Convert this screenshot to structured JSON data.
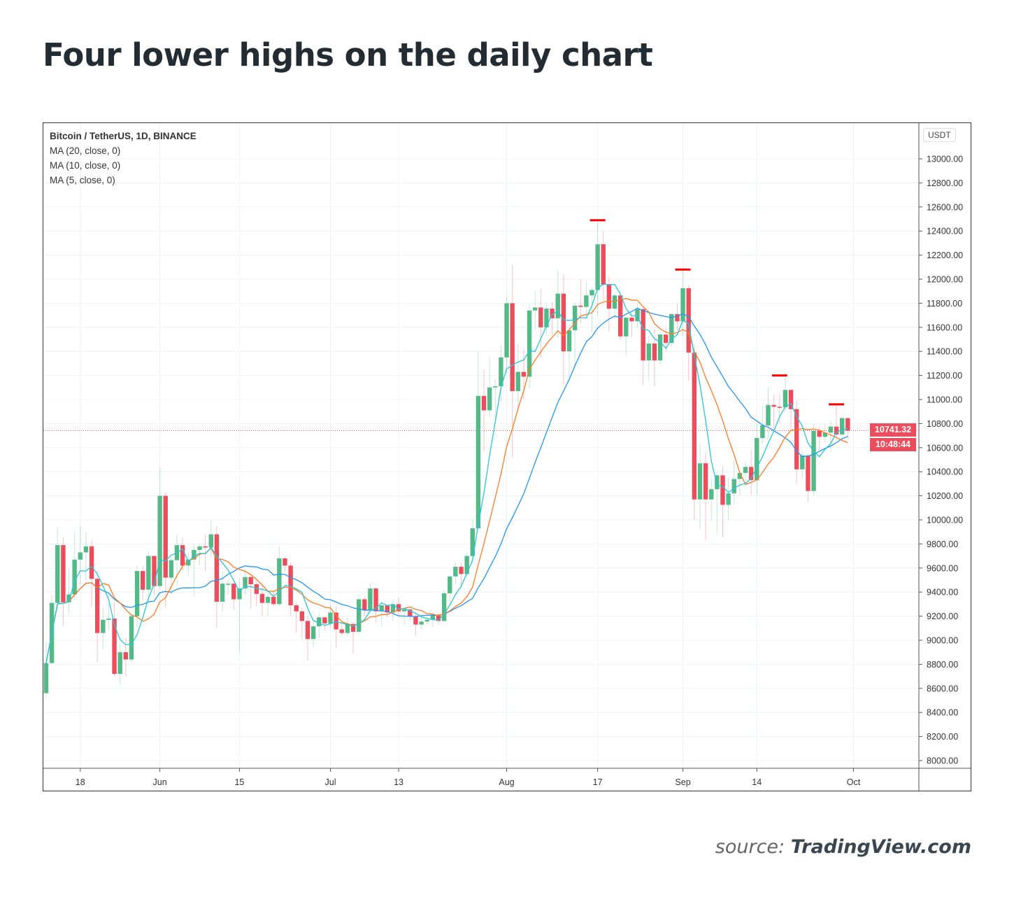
{
  "title": "Four lower highs on the daily chart",
  "source": {
    "prefix": "source:",
    "site": "TradingView.com"
  },
  "chart_data": {
    "type": "candlestick",
    "legend": [
      "Bitcoin / TetherUS, 1D, BINANCE",
      "MA (20, close, 0)",
      "MA (10, close, 0)",
      "MA (5, close, 0)"
    ],
    "currency": "USDT",
    "last_price": "10741.32",
    "countdown": "10:48:44",
    "ylim": [
      7950,
      13250
    ],
    "y_ticks": [
      8000,
      8200,
      8400,
      8600,
      8800,
      9000,
      9200,
      9400,
      9600,
      9800,
      10000,
      10200,
      10400,
      10600,
      10800,
      11000,
      11200,
      11400,
      11600,
      11800,
      12000,
      12200,
      12400,
      12600,
      12800,
      13000
    ],
    "x_ticks": [
      {
        "date": "May 18",
        "label": "18"
      },
      {
        "date": "Jun 1",
        "label": "Jun"
      },
      {
        "date": "Jun 15",
        "label": "15"
      },
      {
        "date": "Jul 1",
        "label": "Jul"
      },
      {
        "date": "Jul 13",
        "label": "13"
      },
      {
        "date": "Aug 1",
        "label": "Aug"
      },
      {
        "date": "Aug 17",
        "label": "17"
      },
      {
        "date": "Sep 1",
        "label": "Sep"
      },
      {
        "date": "Sep 14",
        "label": "14"
      },
      {
        "date": "Oct 1",
        "label": "Oct"
      }
    ],
    "grid": true,
    "colors": {
      "up": "#53b987",
      "down": "#eb4d5c",
      "ma20": "#2196f3",
      "ma10": "#ff7a21",
      "ma5": "#26c6da",
      "marker": "#ff0000"
    },
    "moving_averages": [
      20,
      10,
      5
    ],
    "lower_high_markers": [
      {
        "date": "Aug 17",
        "price": 12490
      },
      {
        "date": "Sep 1",
        "price": 12080
      },
      {
        "date": "Sep 18",
        "price": 11200
      },
      {
        "date": "Sep 28",
        "price": 10960
      }
    ],
    "candles_columns": [
      "date",
      "open",
      "high",
      "low",
      "close"
    ],
    "candles": [
      [
        "May 12",
        8560,
        8980,
        8520,
        8810
      ],
      [
        "May 13",
        8810,
        9380,
        8800,
        9310
      ],
      [
        "May 14",
        9310,
        9940,
        9260,
        9790
      ],
      [
        "May 15",
        9790,
        9850,
        9120,
        9315
      ],
      [
        "May 16",
        9315,
        9590,
        9220,
        9380
      ],
      [
        "May 17",
        9380,
        9890,
        9340,
        9670
      ],
      [
        "May 18",
        9670,
        9950,
        9460,
        9730
      ],
      [
        "May 19",
        9730,
        9900,
        9480,
        9780
      ],
      [
        "May 20",
        9780,
        9830,
        9280,
        9510
      ],
      [
        "May 21",
        9510,
        9580,
        8820,
        9060
      ],
      [
        "May 22",
        9060,
        9270,
        8930,
        9170
      ],
      [
        "May 23",
        9170,
        9310,
        9090,
        9180
      ],
      [
        "May 24",
        9180,
        9320,
        8700,
        8720
      ],
      [
        "May 25",
        8720,
        8970,
        8630,
        8900
      ],
      [
        "May 26",
        8900,
        9020,
        8700,
        8840
      ],
      [
        "May 27",
        8840,
        9220,
        8810,
        9200
      ],
      [
        "May 28",
        9200,
        9625,
        9110,
        9575
      ],
      [
        "May 29",
        9575,
        9610,
        9330,
        9420
      ],
      [
        "May 30",
        9420,
        9740,
        9330,
        9700
      ],
      [
        "May 31",
        9700,
        9700,
        9380,
        9450
      ],
      [
        "Jun 1",
        9450,
        10430,
        9420,
        10200
      ],
      [
        "Jun 2",
        10200,
        10230,
        9270,
        9520
      ],
      [
        "Jun 3",
        9520,
        9690,
        9380,
        9665
      ],
      [
        "Jun 4",
        9665,
        9880,
        9450,
        9790
      ],
      [
        "Jun 5",
        9790,
        9850,
        9580,
        9620
      ],
      [
        "Jun 6",
        9620,
        9730,
        9530,
        9670
      ],
      [
        "Jun 7",
        9670,
        9800,
        9370,
        9750
      ],
      [
        "Jun 8",
        9750,
        9800,
        9630,
        9780
      ],
      [
        "Jun 9",
        9780,
        9880,
        9570,
        9770
      ],
      [
        "Jun 10",
        9770,
        9995,
        9690,
        9880
      ],
      [
        "Jun 11",
        9880,
        9950,
        9100,
        9320
      ],
      [
        "Jun 12",
        9320,
        9570,
        9240,
        9470
      ],
      [
        "Jun 13",
        9470,
        9500,
        9380,
        9470
      ],
      [
        "Jun 14",
        9470,
        9490,
        9250,
        9340
      ],
      [
        "Jun 15",
        9340,
        9500,
        8900,
        9430
      ],
      [
        "Jun 16",
        9430,
        9580,
        9380,
        9525
      ],
      [
        "Jun 17",
        9525,
        9550,
        9260,
        9465
      ],
      [
        "Jun 18",
        9465,
        9490,
        9280,
        9385
      ],
      [
        "Jun 19",
        9385,
        9450,
        9200,
        9310
      ],
      [
        "Jun 20",
        9310,
        9390,
        9200,
        9360
      ],
      [
        "Jun 21",
        9360,
        9400,
        9280,
        9300
      ],
      [
        "Jun 22",
        9300,
        9780,
        9280,
        9680
      ],
      [
        "Jun 23",
        9680,
        9690,
        9570,
        9620
      ],
      [
        "Jun 24",
        9620,
        9650,
        9200,
        9290
      ],
      [
        "Jun 25",
        9290,
        9320,
        9060,
        9240
      ],
      [
        "Jun 26",
        9240,
        9270,
        9020,
        9160
      ],
      [
        "Jun 27",
        9160,
        9200,
        8830,
        9010
      ],
      [
        "Jun 28",
        9010,
        9180,
        8940,
        9115
      ],
      [
        "Jun 29",
        9115,
        9230,
        9020,
        9190
      ],
      [
        "Jun 30",
        9190,
        9200,
        9080,
        9140
      ],
      [
        "Jul 1",
        9140,
        9300,
        9100,
        9230
      ],
      [
        "Jul 2",
        9230,
        9280,
        8940,
        9090
      ],
      [
        "Jul 3",
        9090,
        9130,
        9040,
        9060
      ],
      [
        "Jul 4",
        9060,
        9190,
        9040,
        9135
      ],
      [
        "Jul 5",
        9135,
        9150,
        8890,
        9070
      ],
      [
        "Jul 6",
        9070,
        9380,
        9050,
        9340
      ],
      [
        "Jul 7",
        9340,
        9360,
        9200,
        9250
      ],
      [
        "Jul 8",
        9250,
        9470,
        9230,
        9430
      ],
      [
        "Jul 9",
        9430,
        9440,
        9150,
        9240
      ],
      [
        "Jul 10",
        9240,
        9320,
        9120,
        9290
      ],
      [
        "Jul 11",
        9290,
        9300,
        9190,
        9230
      ],
      [
        "Jul 12",
        9230,
        9340,
        9160,
        9300
      ],
      [
        "Jul 13",
        9300,
        9350,
        9200,
        9240
      ],
      [
        "Jul 14",
        9240,
        9280,
        9120,
        9255
      ],
      [
        "Jul 15",
        9255,
        9270,
        9160,
        9195
      ],
      [
        "Jul 16",
        9195,
        9215,
        9040,
        9130
      ],
      [
        "Jul 17",
        9130,
        9190,
        9090,
        9155
      ],
      [
        "Jul 18",
        9155,
        9200,
        9130,
        9170
      ],
      [
        "Jul 19",
        9170,
        9230,
        9110,
        9210
      ],
      [
        "Jul 20",
        9210,
        9220,
        9130,
        9160
      ],
      [
        "Jul 21",
        9160,
        9420,
        9150,
        9390
      ],
      [
        "Jul 22",
        9390,
        9540,
        9290,
        9530
      ],
      [
        "Jul 23",
        9530,
        9650,
        9470,
        9610
      ],
      [
        "Jul 24",
        9610,
        9640,
        9440,
        9550
      ],
      [
        "Jul 25",
        9550,
        9730,
        9530,
        9700
      ],
      [
        "Jul 26",
        9700,
        10000,
        9640,
        9930
      ],
      [
        "Jul 27",
        9930,
        11400,
        9920,
        11030
      ],
      [
        "Jul 28",
        11030,
        11250,
        10570,
        10910
      ],
      [
        "Jul 29",
        10910,
        11350,
        10860,
        11100
      ],
      [
        "Jul 30",
        11100,
        11170,
        10830,
        11110
      ],
      [
        "Jul 31",
        11110,
        11450,
        10980,
        11350
      ],
      [
        "Aug 1",
        11350,
        11860,
        11220,
        11800
      ],
      [
        "Aug 2",
        11800,
        12120,
        10520,
        11070
      ],
      [
        "Aug 3",
        11070,
        11470,
        10930,
        11230
      ],
      [
        "Aug 4",
        11230,
        11420,
        11000,
        11190
      ],
      [
        "Aug 5",
        11190,
        11790,
        11090,
        11740
      ],
      [
        "Aug 6",
        11740,
        11900,
        11580,
        11765
      ],
      [
        "Aug 7",
        11765,
        11920,
        11350,
        11600
      ],
      [
        "Aug 8",
        11600,
        11800,
        11530,
        11755
      ],
      [
        "Aug 9",
        11755,
        11810,
        11540,
        11675
      ],
      [
        "Aug 10",
        11675,
        12070,
        11510,
        11880
      ],
      [
        "Aug 11",
        11880,
        12040,
        11120,
        11400
      ],
      [
        "Aug 12",
        11400,
        11620,
        11150,
        11575
      ],
      [
        "Aug 13",
        11575,
        11800,
        11260,
        11780
      ],
      [
        "Aug 14",
        11780,
        12000,
        11630,
        11770
      ],
      [
        "Aug 15",
        11770,
        11980,
        11680,
        11865
      ],
      [
        "Aug 16",
        11865,
        11930,
        11560,
        11910
      ],
      [
        "Aug 17",
        11910,
        12480,
        11690,
        12290
      ],
      [
        "Aug 18",
        12290,
        12400,
        11820,
        11955
      ],
      [
        "Aug 19",
        11955,
        12020,
        11560,
        11755
      ],
      [
        "Aug 20",
        11755,
        11880,
        11670,
        11865
      ],
      [
        "Aug 21",
        11865,
        11885,
        11490,
        11525
      ],
      [
        "Aug 22",
        11525,
        11690,
        11370,
        11680
      ],
      [
        "Aug 23",
        11680,
        11715,
        11520,
        11650
      ],
      [
        "Aug 24",
        11650,
        11800,
        11600,
        11750
      ],
      [
        "Aug 25",
        11750,
        11770,
        11120,
        11325
      ],
      [
        "Aug 26",
        11325,
        11530,
        11160,
        11465
      ],
      [
        "Aug 27",
        11465,
        11590,
        11110,
        11325
      ],
      [
        "Aug 28",
        11325,
        11560,
        11290,
        11540
      ],
      [
        "Aug 29",
        11540,
        11590,
        11400,
        11470
      ],
      [
        "Aug 30",
        11470,
        11720,
        11440,
        11710
      ],
      [
        "Aug 31",
        11710,
        11800,
        11570,
        11650
      ],
      [
        "Sep 1",
        11650,
        12070,
        11530,
        11925
      ],
      [
        "Sep 2",
        11925,
        11950,
        11160,
        11390
      ],
      [
        "Sep 3",
        11390,
        11460,
        10000,
        10170
      ],
      [
        "Sep 4",
        10170,
        10630,
        9920,
        10470
      ],
      [
        "Sep 5",
        10470,
        10560,
        9830,
        10170
      ],
      [
        "Sep 6",
        10170,
        10340,
        9990,
        10255
      ],
      [
        "Sep 7",
        10255,
        10400,
        9880,
        10370
      ],
      [
        "Sep 8",
        10370,
        10440,
        9850,
        10125
      ],
      [
        "Sep 9",
        10125,
        10350,
        9990,
        10220
      ],
      [
        "Sep 10",
        10220,
        10500,
        10140,
        10340
      ],
      [
        "Sep 11",
        10340,
        10400,
        10200,
        10390
      ],
      [
        "Sep 12",
        10390,
        10480,
        10270,
        10440
      ],
      [
        "Sep 13",
        10440,
        10580,
        10210,
        10330
      ],
      [
        "Sep 14",
        10330,
        10800,
        10210,
        10680
      ],
      [
        "Sep 15",
        10680,
        10950,
        10630,
        10785
      ],
      [
        "Sep 16",
        10785,
        11100,
        10680,
        10955
      ],
      [
        "Sep 17",
        10955,
        11040,
        10740,
        10940
      ],
      [
        "Sep 18",
        10940,
        11040,
        10800,
        10935
      ],
      [
        "Sep 19",
        10935,
        11180,
        10890,
        11080
      ],
      [
        "Sep 20",
        11080,
        11080,
        10760,
        10920
      ],
      [
        "Sep 21",
        10920,
        10990,
        10300,
        10420
      ],
      [
        "Sep 22",
        10420,
        10570,
        10350,
        10535
      ],
      [
        "Sep 23",
        10535,
        10550,
        10150,
        10240
      ],
      [
        "Sep 24",
        10240,
        10800,
        10200,
        10740
      ],
      [
        "Sep 25",
        10740,
        10770,
        10580,
        10690
      ],
      [
        "Sep 26",
        10690,
        10800,
        10640,
        10725
      ],
      [
        "Sep 27",
        10725,
        10820,
        10560,
        10775
      ],
      [
        "Sep 28",
        10775,
        10950,
        10660,
        10710
      ],
      [
        "Sep 29",
        10710,
        10860,
        10640,
        10845
      ],
      [
        "Sep 30",
        10845,
        10850,
        10670,
        10741.32
      ]
    ]
  }
}
